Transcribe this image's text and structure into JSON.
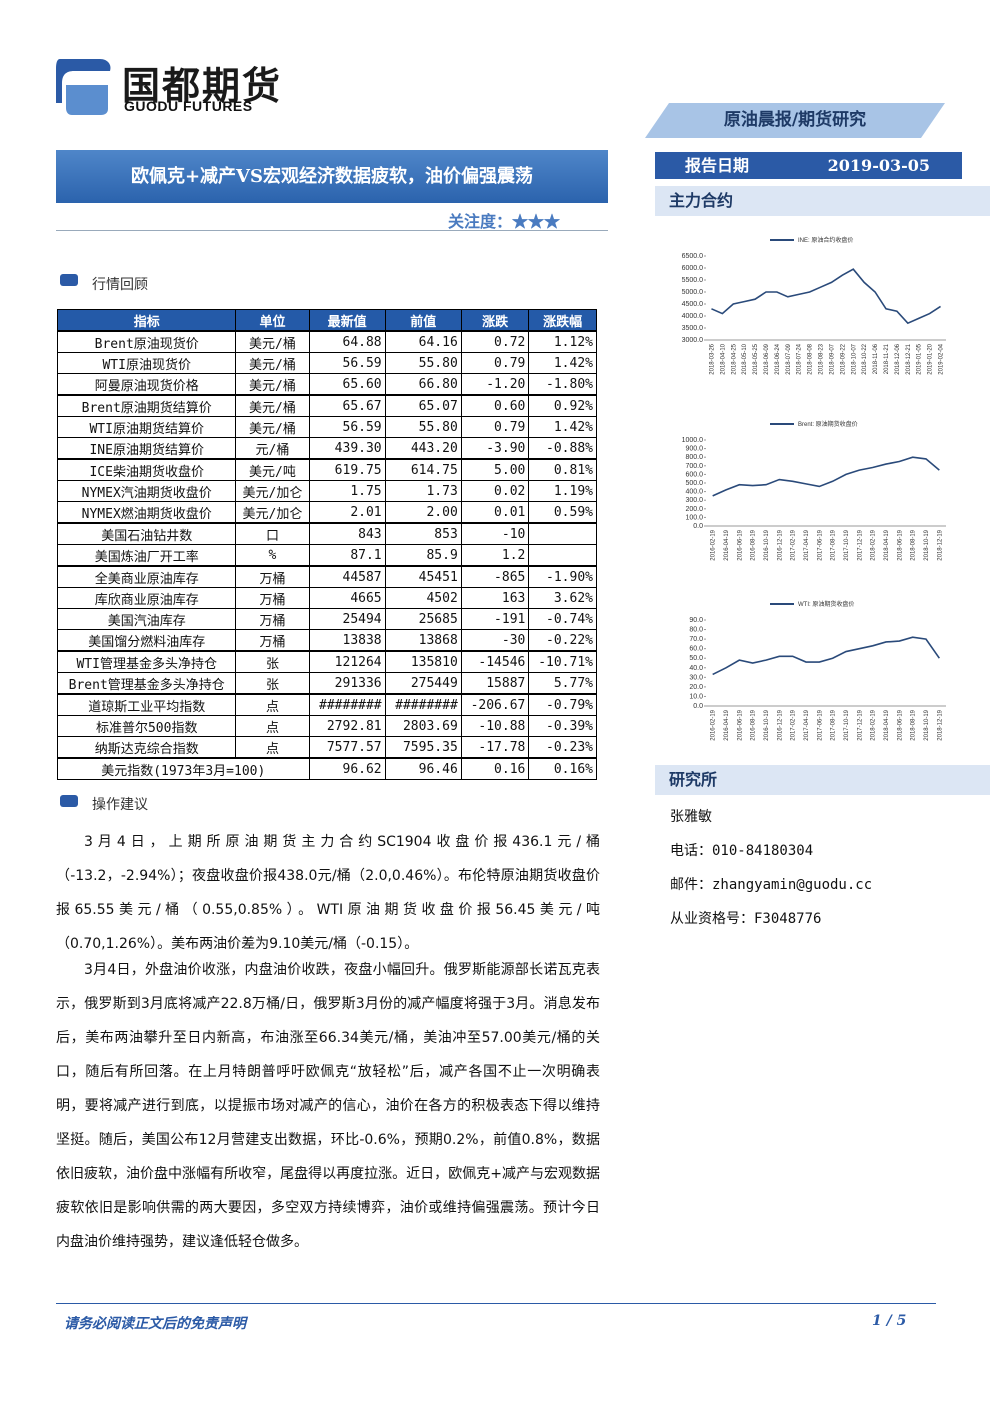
{
  "header": {
    "logo_cn": "国都期货",
    "logo_en": "GUODU FUTURES",
    "tag": "原油晨报/期货研究",
    "title": "欧佩克+减产VS宏观经济数据疲软，油价偏强震荡",
    "attention": "关注度：★★★"
  },
  "sidebar": {
    "date_label": "报告日期",
    "date": "2019-03-05",
    "main_contract": "主力合约",
    "research": "研究所",
    "analyst": "张雅敏",
    "phone": "电话：010-84180304",
    "email": "邮件：zhangyamin@guodu.cc",
    "license": "从业资格号：F3048776"
  },
  "chart_data": [
    {
      "type": "line",
      "series": [
        {
          "name": "INE: 原油合约收盘价",
          "color": "#2a4a7a",
          "values": [
            4300,
            4100,
            4500,
            4600,
            4700,
            5000,
            5000,
            4800,
            4900,
            5000,
            5200,
            5400,
            5700,
            5950,
            5400,
            5000,
            4300,
            4200,
            3700,
            3900,
            4100,
            4400
          ]
        }
      ],
      "categories": [
        "2018-03-26",
        "2018-04-10",
        "2018-04-25",
        "2018-05-10",
        "2018-05-25",
        "2018-06-09",
        "2018-06-24",
        "2018-07-09",
        "2018-07-24",
        "2018-08-08",
        "2018-08-23",
        "2018-09-07",
        "2018-09-22",
        "2018-10-07",
        "2018-10-22",
        "2018-11-06",
        "2018-11-21",
        "2018-12-06",
        "2018-12-21",
        "2019-01-05",
        "2019-01-20",
        "2019-02-04"
      ],
      "ylim": [
        3000,
        6500
      ],
      "yticks": [
        {
          "value": 3000,
          "label": "3000.0"
        },
        {
          "value": 3500,
          "label": "3500.0"
        },
        {
          "value": 4000,
          "label": "4000.0"
        },
        {
          "value": 4500,
          "label": "4500.0"
        },
        {
          "value": 5000,
          "label": "5000.0"
        },
        {
          "value": 5500,
          "label": "5500.0"
        },
        {
          "value": 6000,
          "label": "6000.0"
        },
        {
          "value": 6500,
          "label": "6500.0"
        }
      ]
    },
    {
      "type": "line",
      "series": [
        {
          "name": "Brent: 原油期货收盘价",
          "color": "#2a4a7a",
          "values": [
            350,
            420,
            480,
            470,
            480,
            540,
            520,
            490,
            460,
            520,
            600,
            650,
            680,
            720,
            750,
            800,
            780,
            650
          ]
        }
      ],
      "categories": [
        "2016-02-19",
        "2016-04-19",
        "2016-06-19",
        "2016-08-19",
        "2016-10-19",
        "2016-12-19",
        "2017-02-19",
        "2017-04-19",
        "2017-06-19",
        "2017-08-19",
        "2017-10-19",
        "2017-12-19",
        "2018-02-19",
        "2018-04-19",
        "2018-06-19",
        "2018-08-19",
        "2018-10-19",
        "2018-12-19"
      ],
      "ylim": [
        0,
        1000
      ],
      "yticks": [
        {
          "value": 0,
          "label": "0.0"
        },
        {
          "value": 100,
          "label": "100.0"
        },
        {
          "value": 200,
          "label": "200.0"
        },
        {
          "value": 300,
          "label": "300.0"
        },
        {
          "value": 400,
          "label": "400.0"
        },
        {
          "value": 500,
          "label": "500.0"
        },
        {
          "value": 600,
          "label": "600.0"
        },
        {
          "value": 700,
          "label": "700.0"
        },
        {
          "value": 800,
          "label": "800.0"
        },
        {
          "value": 900,
          "label": "900.0"
        },
        {
          "value": 1000,
          "label": "1000.0"
        }
      ]
    },
    {
      "type": "line",
      "series": [
        {
          "name": "WTI: 原油期货收盘价",
          "color": "#2a4a7a",
          "values": [
            33,
            40,
            48,
            45,
            48,
            52,
            52,
            46,
            46,
            50,
            57,
            60,
            63,
            67,
            68,
            72,
            70,
            50
          ]
        }
      ],
      "categories": [
        "2016-02-19",
        "2016-04-19",
        "2016-06-19",
        "2016-08-19",
        "2016-10-19",
        "2016-12-19",
        "2017-02-19",
        "2017-04-19",
        "2017-06-19",
        "2017-08-19",
        "2017-10-19",
        "2017-12-19",
        "2018-02-19",
        "2018-04-19",
        "2018-06-19",
        "2018-08-19",
        "2018-10-19",
        "2018-12-19"
      ],
      "ylim": [
        0,
        90
      ],
      "yticks": [
        {
          "value": 0,
          "label": "0.0"
        },
        {
          "value": 10,
          "label": "10.0"
        },
        {
          "value": 20,
          "label": "20.0"
        },
        {
          "value": 30,
          "label": "30.0"
        },
        {
          "value": 40,
          "label": "40.0"
        },
        {
          "value": 50,
          "label": "50.0"
        },
        {
          "value": 60,
          "label": "60.0"
        },
        {
          "value": 70,
          "label": "70.0"
        },
        {
          "value": 80,
          "label": "80.0"
        },
        {
          "value": 90,
          "label": "90.0"
        }
      ]
    }
  ],
  "section1": "行情回顾",
  "table": {
    "header": [
      "指标",
      "单位",
      "最新值",
      "前值",
      "涨跌",
      "涨跌幅"
    ],
    "groups": [
      [
        [
          "Brent原油现货价",
          "美元/桶",
          "64.88",
          "64.16",
          "0.72",
          "1.12%"
        ],
        [
          "WTI原油现货价",
          "美元/桶",
          "56.59",
          "55.80",
          "0.79",
          "1.42%"
        ],
        [
          "阿曼原油现货价格",
          "美元/桶",
          "65.60",
          "66.80",
          "-1.20",
          "-1.80%"
        ]
      ],
      [
        [
          "Brent原油期货结算价",
          "美元/桶",
          "65.67",
          "65.07",
          "0.60",
          "0.92%"
        ],
        [
          "WTI原油期货结算价",
          "美元/桶",
          "56.59",
          "55.80",
          "0.79",
          "1.42%"
        ],
        [
          "INE原油期货结算价",
          "元/桶",
          "439.30",
          "443.20",
          "-3.90",
          "-0.88%"
        ]
      ],
      [
        [
          "ICE柴油期货收盘价",
          "美元/吨",
          "619.75",
          "614.75",
          "5.00",
          "0.81%"
        ],
        [
          "NYMEX汽油期货收盘价",
          "美元/加仑",
          "1.75",
          "1.73",
          "0.02",
          "1.19%"
        ],
        [
          "NYMEX燃油期货收盘价",
          "美元/加仑",
          "2.01",
          "2.00",
          "0.01",
          "0.59%"
        ]
      ],
      [
        [
          "美国石油钻井数",
          "口",
          "843",
          "853",
          "-10"
        ],
        [
          "美国炼油厂开工率",
          "%",
          "87.1",
          "85.9",
          "1.2"
        ]
      ],
      [
        [
          "全美商业原油库存",
          "万桶",
          "44587",
          "45451",
          "-865",
          "-1.90%"
        ],
        [
          "库欣商业原油库存",
          "万桶",
          "4665",
          "4502",
          "163",
          "3.62%"
        ],
        [
          "美国汽油库存",
          "万桶",
          "25494",
          "25685",
          "-191",
          "-0.74%"
        ],
        [
          "美国馏分燃料油库存",
          "万桶",
          "13838",
          "13868",
          "-30",
          "-0.22%"
        ]
      ],
      [
        [
          "WTI管理基金多头净持仓",
          "张",
          "121264",
          "135810",
          "-14546",
          "-10.71%"
        ],
        [
          "Brent管理基金多头净持仓",
          "张",
          "291336",
          "275449",
          "15887",
          "5.77%"
        ]
      ],
      [
        [
          "道琼斯工业平均指数",
          "点",
          "########",
          "########",
          "-206.67",
          "-0.79%"
        ],
        [
          "标准普尔500指数",
          "点",
          "2792.81",
          "2803.69",
          "-10.88",
          "-0.39%"
        ],
        [
          "纳斯达克综合指数",
          "点",
          "7577.57",
          "7595.35",
          "-17.78",
          "-0.23%"
        ]
      ],
      [
        [
          "美元指数(1973年3月=100)",
          "96.62",
          "96.46",
          "0.16",
          "0.16%"
        ]
      ]
    ]
  },
  "section2": "操作建议",
  "paragraphs": [
    "3月4日，上期所原油期货主力合约SC1904收盘价报436.1元/桶（-13.2，-2.94%）；夜盘收盘价报438.0元/桶（2.0,0.46%）。布伦特原油期货收盘价报65.55美元/桶（0.55,0.85%）。WTI原油期货收盘价报56.45美元/吨（0.70,1.26%）。美布两油价差为9.10美元/桶（-0.15）。",
    "3月4日，外盘油价收涨，内盘油价收跌，夜盘小幅回升。俄罗斯能源部长诺瓦克表示，俄罗斯到3月底将减产22.8万桶/日，俄罗斯3月份的减产幅度将强于3月。消息发布后，美布两油攀升至日内新高，布油涨至66.34美元/桶，美油冲至57.00美元/桶的关口，随后有所回落。在上月特朗普呼吁欧佩克“放轻松”后，减产各国不止一次明确表明，要将减产进行到底，以提振市场对减产的信心，油价在各方的积极表态下得以维持坚挺。随后，美国公布12月营建支出数据，环比-0.6%，预期0.2%，前值0.8%，数据依旧疲软，油价盘中涨幅有所收窄，尾盘得以再度拉涨。近日，欧佩克+减产与宏观数据疲软依旧是影响供需的两大要因，多空双方持续博弈，油价或维持偏强震荡。预计今日内盘油价维持强势，建议逢低轻仓做多。"
  ],
  "footer": {
    "disclaimer": "请务必阅读正文后的免责声明",
    "page": "1 / 5"
  }
}
